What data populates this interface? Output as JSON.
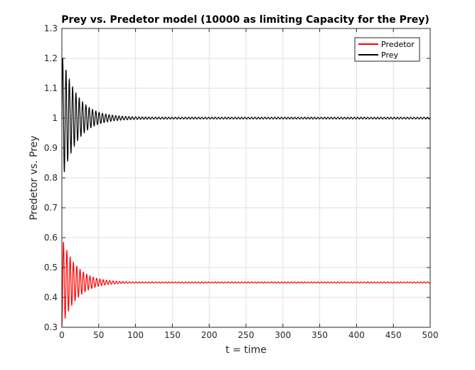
{
  "chart_data": {
    "type": "line",
    "title": "Prey vs. Predetor model (10000 as limiting Capacity for the Prey)",
    "xlabel": "t = time",
    "ylabel": "Predetor vs. Prey",
    "xlim": [
      0,
      500
    ],
    "ylim": [
      0.3,
      1.3
    ],
    "xticks": [
      0,
      50,
      100,
      150,
      200,
      250,
      300,
      350,
      400,
      450,
      500
    ],
    "yticks": [
      0.3,
      0.4,
      0.5,
      0.6,
      0.7,
      0.8,
      0.9,
      1,
      1.1,
      1.2,
      1.3
    ],
    "xtick_labels": [
      "0",
      "50",
      "100",
      "150",
      "200",
      "250",
      "300",
      "350",
      "400",
      "450",
      "500"
    ],
    "ytick_labels": [
      "0.3",
      "0.4",
      "0.5",
      "0.6",
      "0.7",
      "0.8",
      "0.9",
      "1",
      "1.1",
      "1.2",
      "1.3"
    ],
    "grid": true,
    "legend_position": "top-right",
    "series": [
      {
        "name": "Predetor",
        "color": "#ff0000",
        "oscillation": {
          "equilibrium": 0.45,
          "initial_value": 0.3,
          "first_peak": 0.62,
          "period": 4.5,
          "settled_by_t": 100
        }
      },
      {
        "name": "Prey",
        "color": "#000000",
        "oscillation": {
          "equilibrium": 1.0,
          "initial_value": 1.0,
          "first_peak": 1.21,
          "first_trough": 0.83,
          "period": 4.5,
          "settled_by_t": 100
        }
      }
    ]
  }
}
